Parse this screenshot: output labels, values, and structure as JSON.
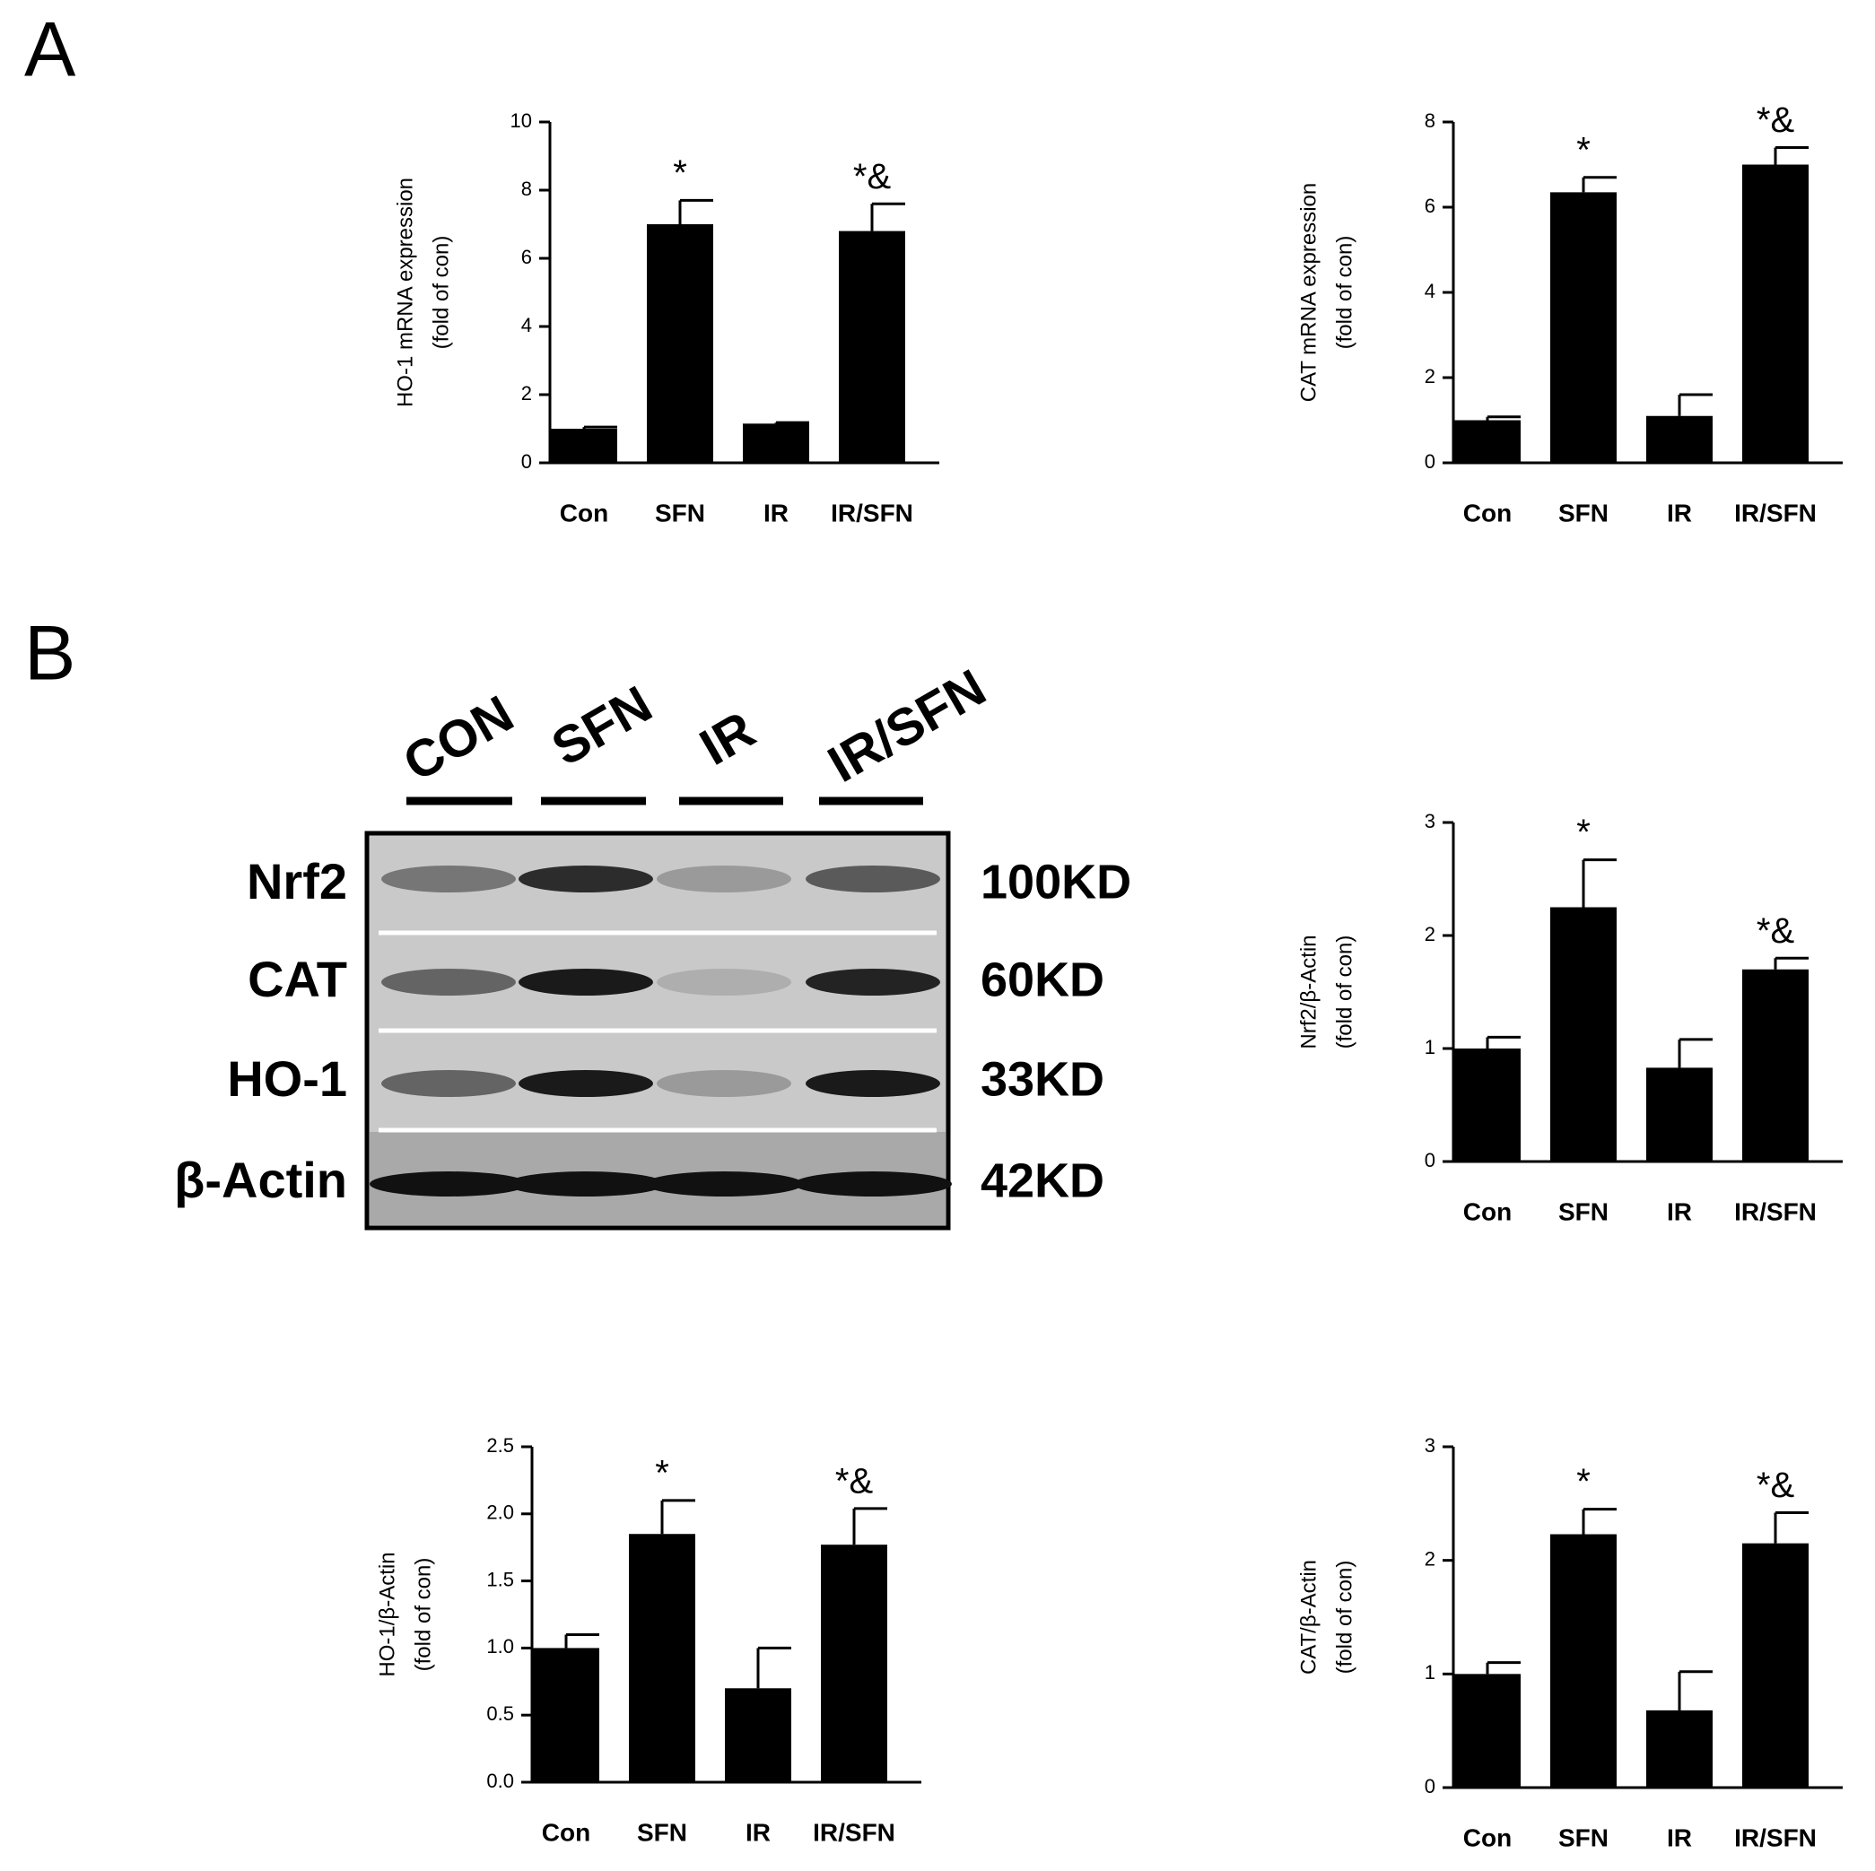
{
  "panels": [
    "A",
    "B"
  ],
  "chart_data": [
    {
      "type": "bar",
      "ylabel": [
        "HO-1 mRNA expression",
        "(fold of con)"
      ],
      "categories": [
        "Con",
        "SFN",
        "IR",
        "IR/SFN"
      ],
      "values": [
        1.0,
        7.0,
        1.15,
        6.8
      ],
      "errors": [
        0.05,
        0.7,
        0.03,
        0.8
      ],
      "annotations": [
        null,
        "*",
        null,
        "*&"
      ],
      "color": "#000000",
      "ylim": [
        0,
        10
      ],
      "yticks": [
        0,
        2,
        4,
        6,
        8,
        10
      ]
    },
    {
      "type": "bar",
      "ylabel": [
        "CAT mRNA expression",
        "(fold of con)"
      ],
      "categories": [
        "Con",
        "SFN",
        "IR",
        "IR/SFN"
      ],
      "values": [
        1.0,
        6.35,
        1.1,
        7.0
      ],
      "errors": [
        0.08,
        0.35,
        0.5,
        0.4
      ],
      "annotations": [
        null,
        "*",
        null,
        "*&"
      ],
      "color": "#000000",
      "ylim": [
        0,
        8
      ],
      "yticks": [
        0,
        2,
        4,
        6,
        8
      ]
    },
    {
      "type": "bar",
      "ylabel": [
        "Nrf2/β-Actin",
        "(fold of con)"
      ],
      "categories": [
        "Con",
        "SFN",
        "IR",
        "IR/SFN"
      ],
      "values": [
        1.0,
        2.25,
        0.83,
        1.7
      ],
      "errors": [
        0.1,
        0.42,
        0.25,
        0.1
      ],
      "annotations": [
        null,
        "*",
        null,
        "*&"
      ],
      "color": "#000000",
      "ylim": [
        0,
        3
      ],
      "yticks": [
        0,
        1,
        2,
        3
      ]
    },
    {
      "type": "bar",
      "ylabel": [
        "HO-1/β-Actin",
        "(fold of con)"
      ],
      "categories": [
        "Con",
        "SFN",
        "IR",
        "IR/SFN"
      ],
      "values": [
        1.0,
        1.85,
        0.7,
        1.77
      ],
      "errors": [
        0.1,
        0.25,
        0.3,
        0.27
      ],
      "annotations": [
        null,
        "*",
        null,
        "*&"
      ],
      "color": "#000000",
      "ylim": [
        0,
        2.5
      ],
      "yticks": [
        {
          "value": 0,
          "label": "0.0"
        },
        0.5,
        {
          "value": 1,
          "label": "1.0"
        },
        1.5,
        {
          "value": 2,
          "label": "2.0"
        },
        2.5
      ]
    },
    {
      "type": "bar",
      "ylabel": [
        "CAT/β-Actin",
        "(fold of con)"
      ],
      "categories": [
        "Con",
        "SFN",
        "IR",
        "IR/SFN"
      ],
      "values": [
        1.0,
        2.23,
        0.68,
        2.15
      ],
      "errors": [
        0.1,
        0.22,
        0.34,
        0.27
      ],
      "annotations": [
        null,
        "*",
        null,
        "*&"
      ],
      "color": "#000000",
      "ylim": [
        0,
        3
      ],
      "yticks": [
        0,
        1,
        2,
        3
      ]
    }
  ],
  "blot": {
    "lanes": [
      "CON",
      "SFN",
      "IR",
      "IR/SFN"
    ],
    "rows": [
      {
        "name": "Nrf2",
        "size": "100KD"
      },
      {
        "name": "CAT",
        "size": "60KD"
      },
      {
        "name": "HO-1",
        "size": "33KD"
      },
      {
        "name": "β-Actin",
        "size": "42KD"
      }
    ]
  }
}
